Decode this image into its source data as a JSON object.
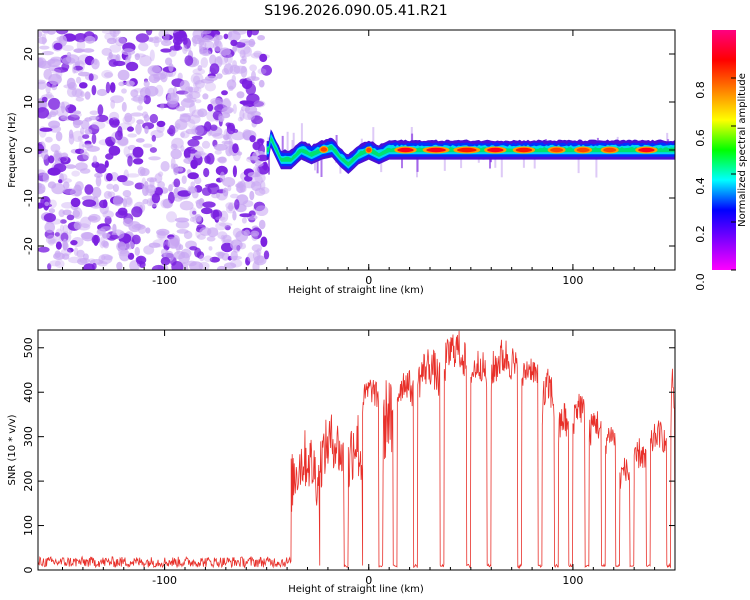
{
  "chart_data": [
    {
      "type": "heatmap",
      "title": "S196.2026.090.05.41.R21",
      "xlabel": "Height of straight line (km)",
      "ylabel": "Frequency (Hz)",
      "xlim": [
        -162,
        150
      ],
      "ylim": [
        -25,
        25
      ],
      "x_ticks": [
        -100,
        0,
        100
      ],
      "x_tick_labels": [
        "-100",
        "0",
        "100"
      ],
      "y_ticks": [
        20,
        10,
        0,
        -10,
        -20
      ],
      "y_tick_labels": [
        "20",
        "10",
        "0",
        "-10",
        "-20"
      ],
      "noise_region_x": [
        -162,
        -50
      ],
      "ridge_region_x": [
        -50,
        150
      ],
      "ridge_points": [
        {
          "x": -48,
          "y": 2.5
        },
        {
          "x": -43,
          "y": -2
        },
        {
          "x": -38,
          "y": -2
        },
        {
          "x": -33,
          "y": 0
        },
        {
          "x": -28,
          "y": -1
        },
        {
          "x": -23,
          "y": 0
        },
        {
          "x": -18,
          "y": 0.5
        },
        {
          "x": -14,
          "y": -1.5
        },
        {
          "x": -10,
          "y": -3
        },
        {
          "x": -5,
          "y": -1
        },
        {
          "x": 0,
          "y": 0
        },
        {
          "x": 5,
          "y": -1
        },
        {
          "x": 10,
          "y": 0
        },
        {
          "x": 150,
          "y": 0
        }
      ],
      "hot_spots": [
        {
          "x": 18,
          "w": 10,
          "v": 1.0
        },
        {
          "x": 33,
          "w": 12,
          "v": 1.0
        },
        {
          "x": 48,
          "w": 12,
          "v": 0.95
        },
        {
          "x": 62,
          "w": 10,
          "v": 1.0
        },
        {
          "x": 76,
          "w": 10,
          "v": 0.95
        },
        {
          "x": 92,
          "w": 8,
          "v": 0.9
        },
        {
          "x": 105,
          "w": 8,
          "v": 0.9
        },
        {
          "x": 118,
          "w": 8,
          "v": 0.9
        },
        {
          "x": 136,
          "w": 10,
          "v": 1.0
        },
        {
          "x": -22,
          "w": 4,
          "v": 0.9
        },
        {
          "x": 0,
          "w": 3,
          "v": 0.9
        }
      ],
      "colorbar": {
        "label": "Normalized spectral amplitude",
        "range": [
          0.0,
          1.0
        ],
        "ticks": [
          0.0,
          0.2,
          0.4,
          0.6,
          0.8
        ],
        "tick_labels": [
          "0.0",
          "0.2",
          "0.4",
          "0.6",
          "0.8"
        ],
        "stops": [
          "#ff00ff",
          "#8000ff",
          "#0000ff",
          "#00ffff",
          "#00ff00",
          "#ffff00",
          "#ff8000",
          "#ff0000",
          "#ff0080"
        ]
      },
      "colors": {
        "noise": "#7a1fe0",
        "noise_light": "#c8a6f2"
      }
    },
    {
      "type": "line",
      "xlabel": "Height of straight line (km)",
      "ylabel": "SNR (10 * v/v)",
      "xlim": [
        -162,
        150
      ],
      "ylim": [
        0,
        540
      ],
      "x_ticks": [
        -100,
        0,
        100
      ],
      "x_tick_labels": [
        "-100",
        "0",
        "100"
      ],
      "y_ticks": [
        0,
        100,
        200,
        300,
        400,
        500
      ],
      "y_tick_labels": [
        "0",
        "100",
        "200",
        "300",
        "400",
        "500"
      ],
      "color": "#e8302a",
      "baseline": {
        "x": [
          -162,
          -38
        ],
        "mean": 18,
        "amp": 12
      },
      "segments": [
        {
          "x0": -38,
          "x1": -24,
          "lo": 130,
          "hi": 280
        },
        {
          "x0": -24,
          "x1": -12,
          "lo": 180,
          "hi": 320
        },
        {
          "x0": -10,
          "x1": -3,
          "lo": 150,
          "hi": 330
        },
        {
          "x0": -3,
          "x1": 5,
          "lo": 350,
          "hi": 420
        },
        {
          "x0": 7,
          "x1": 12,
          "lo": 200,
          "hi": 400
        },
        {
          "x0": 14,
          "x1": 22,
          "lo": 360,
          "hi": 440
        },
        {
          "x0": 24,
          "x1": 35,
          "lo": 380,
          "hi": 480
        },
        {
          "x0": 37,
          "x1": 48,
          "lo": 420,
          "hi": 520
        },
        {
          "x0": 50,
          "x1": 58,
          "lo": 400,
          "hi": 480
        },
        {
          "x0": 60,
          "x1": 73,
          "lo": 400,
          "hi": 500
        },
        {
          "x0": 75,
          "x1": 83,
          "lo": 400,
          "hi": 470
        },
        {
          "x0": 85,
          "x1": 91,
          "lo": 330,
          "hi": 430
        },
        {
          "x0": 93,
          "x1": 98,
          "lo": 270,
          "hi": 360
        },
        {
          "x0": 100,
          "x1": 106,
          "lo": 300,
          "hi": 390
        },
        {
          "x0": 108,
          "x1": 114,
          "lo": 270,
          "hi": 350
        },
        {
          "x0": 116,
          "x1": 121,
          "lo": 260,
          "hi": 320
        },
        {
          "x0": 123,
          "x1": 128,
          "lo": 180,
          "hi": 240
        },
        {
          "x0": 130,
          "x1": 136,
          "lo": 200,
          "hi": 280
        },
        {
          "x0": 138,
          "x1": 146,
          "lo": 250,
          "hi": 320
        },
        {
          "x0": 148,
          "x1": 150,
          "lo": 300,
          "hi": 430
        }
      ]
    }
  ]
}
